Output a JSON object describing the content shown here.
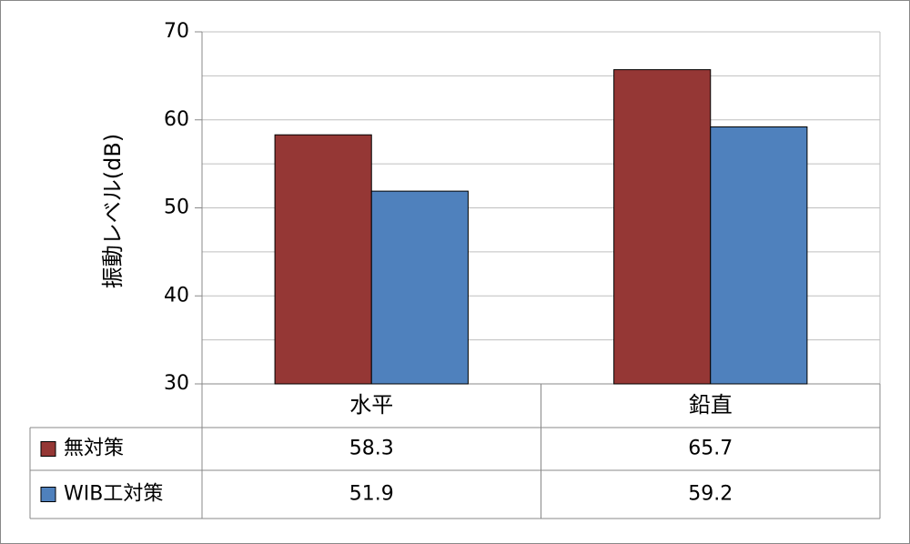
{
  "chart_data": {
    "type": "bar",
    "y_label": "振動レベル(dB)",
    "categories": [
      "水平",
      "鉛直"
    ],
    "series": [
      {
        "name": "無対策",
        "color": "#953735",
        "values": [
          58.3,
          65.7
        ]
      },
      {
        "name": "WIB工対策",
        "color": "#4f81bd",
        "values": [
          51.9,
          59.2
        ]
      }
    ],
    "ylim": [
      30,
      70
    ],
    "yticks": [
      30,
      40,
      50,
      60,
      70
    ],
    "minor_yticks": [
      35,
      45,
      55,
      65
    ],
    "grid": true,
    "legend": "data-table"
  }
}
